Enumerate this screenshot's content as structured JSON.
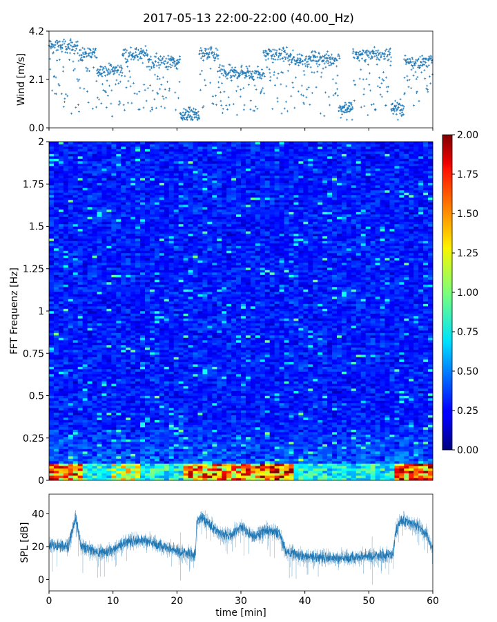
{
  "title": "2017-05-13 22:00-22:00 (40.00_Hz)",
  "chart_data": [
    {
      "type": "scatter",
      "panel": "wind",
      "ylabel": "Wind [m/s]",
      "xlim": [
        0,
        60
      ],
      "ylim": [
        0,
        4.2
      ],
      "yticks": [
        0.0,
        2.1,
        4.2
      ],
      "ytick_labels": [
        "0.0",
        "2.1",
        "4.2"
      ],
      "marker": "+",
      "color": "#1f77b4",
      "segments": [
        {
          "x0": 0.0,
          "x1": 4.5,
          "level": 3.55,
          "dip": 0.8
        },
        {
          "x0": 4.5,
          "x1": 7.5,
          "level": 3.2,
          "dip": 0.6
        },
        {
          "x0": 7.5,
          "x1": 11.5,
          "level": 2.5,
          "dip": 0.7
        },
        {
          "x0": 11.5,
          "x1": 15.5,
          "level": 3.2,
          "dip": 0.8
        },
        {
          "x0": 15.5,
          "x1": 20.5,
          "level": 2.9,
          "dip": 0.6
        },
        {
          "x0": 20.5,
          "x1": 23.5,
          "level": 0.6,
          "dip": 0.3
        },
        {
          "x0": 23.5,
          "x1": 26.5,
          "level": 3.2,
          "dip": 0.8
        },
        {
          "x0": 26.5,
          "x1": 33.5,
          "level": 2.4,
          "dip": 0.6
        },
        {
          "x0": 33.5,
          "x1": 37.5,
          "level": 3.2,
          "dip": 0.6
        },
        {
          "x0": 37.5,
          "x1": 45.5,
          "level": 3.0,
          "dip": 0.7
        },
        {
          "x0": 45.5,
          "x1": 47.5,
          "level": 0.9,
          "dip": 0.3
        },
        {
          "x0": 47.5,
          "x1": 53.5,
          "level": 3.2,
          "dip": 0.7
        },
        {
          "x0": 53.5,
          "x1": 55.5,
          "level": 0.9,
          "dip": 0.3
        },
        {
          "x0": 55.5,
          "x1": 60.0,
          "level": 2.9,
          "dip": 0.8
        }
      ]
    },
    {
      "type": "heatmap",
      "panel": "spectrogram",
      "ylabel": "FFT Frequenz [Hz]",
      "xlim": [
        0,
        60
      ],
      "ylim": [
        0,
        2
      ],
      "yticks": [
        0,
        0.25,
        0.5,
        0.75,
        1,
        1.25,
        1.5,
        1.75,
        2
      ],
      "ytick_labels": [
        "0",
        "0.25",
        "0.5",
        "0.75",
        "1",
        "1.25",
        "1.5",
        "1.75",
        "2"
      ],
      "colormap": "jet",
      "clim": [
        0,
        2
      ],
      "colorbar_ticks": [
        "0.00",
        "0.25",
        "0.50",
        "0.75",
        "1.00",
        "1.25",
        "1.50",
        "1.75",
        "2.00"
      ],
      "background_level": 0.3,
      "low_frequency_band": [
        0,
        0.1
      ],
      "high_energy_times": [
        {
          "x0": 0,
          "x1": 5,
          "level": 1.7
        },
        {
          "x0": 10,
          "x1": 14,
          "level": 1.3
        },
        {
          "x0": 21,
          "x1": 33,
          "level": 1.7
        },
        {
          "x0": 33,
          "x1": 38,
          "level": 1.9
        },
        {
          "x0": 54,
          "x1": 60,
          "level": 1.8
        }
      ]
    },
    {
      "type": "line",
      "panel": "spl",
      "ylabel": "SPL [dB]",
      "xlabel": "time [min]",
      "xlim": [
        0,
        60
      ],
      "ylim": [
        -7,
        52
      ],
      "yticks": [
        0,
        20,
        40
      ],
      "ytick_labels": [
        "0",
        "20",
        "40"
      ],
      "xticks": [
        0,
        10,
        20,
        30,
        40,
        50,
        60
      ],
      "xtick_labels": [
        "0",
        "10",
        "20",
        "30",
        "40",
        "50",
        "60"
      ],
      "color": "#1f77b4",
      "envelope_x": [
        0,
        3,
        4.2,
        5,
        8,
        10,
        12,
        15,
        18,
        20,
        22.9,
        23.1,
        24,
        26,
        28,
        30,
        32,
        34,
        36,
        37,
        40,
        45,
        50,
        53.8,
        54.2,
        55,
        57,
        59,
        60
      ],
      "envelope_y": [
        21,
        20,
        38,
        20,
        16,
        18,
        23,
        24,
        20,
        17,
        15,
        35,
        38,
        30,
        26,
        32,
        26,
        30,
        28,
        17,
        14,
        13,
        14,
        15,
        30,
        36,
        34,
        28,
        18
      ]
    }
  ]
}
